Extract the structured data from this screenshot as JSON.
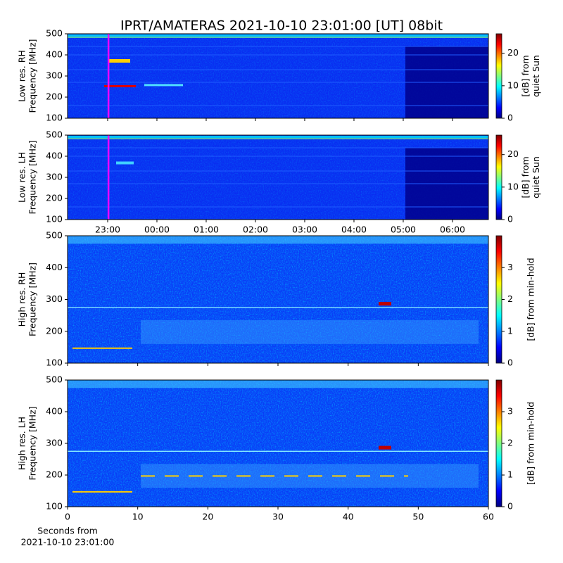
{
  "chart_data": [
    {
      "type": "heatmap",
      "title": "IPRT/AMATERAS 2021-10-10 23:01:00 [UT]   08bit",
      "ylabel": [
        "Low res. RH",
        "Frequency [MHz]"
      ],
      "xlim": [
        22.186,
        30.729
      ],
      "sharex": 1,
      "ylim": [
        100,
        500
      ],
      "yticks": [
        100,
        200,
        300,
        400,
        500
      ],
      "marker_x": 23.0167,
      "marker_color": "#ff00ff",
      "colorbar": {
        "label": [
          "[dB] from",
          "quiet Sun"
        ],
        "lim": [
          0,
          26
        ],
        "ticks": [
          0,
          10,
          20
        ]
      }
    },
    {
      "type": "heatmap",
      "ylabel": [
        "Low res. LH",
        "Frequency [MHz]"
      ],
      "xlim": [
        22.186,
        30.729
      ],
      "xticks": [
        {
          "value": 23,
          "label": "23:00"
        },
        {
          "value": 24,
          "label": "00:00"
        },
        {
          "value": 25,
          "label": "01:00"
        },
        {
          "value": 26,
          "label": "02:00"
        },
        {
          "value": 27,
          "label": "03:00"
        },
        {
          "value": 28,
          "label": "04:00"
        },
        {
          "value": 29,
          "label": "05:00"
        },
        {
          "value": 30,
          "label": "06:00"
        }
      ],
      "ylim": [
        100,
        500
      ],
      "yticks": [
        100,
        200,
        300,
        400,
        500
      ],
      "marker_x": 23.0167,
      "marker_color": "#ff00ff",
      "colorbar": {
        "label": [
          "[dB] from",
          "quiet Sun"
        ],
        "lim": [
          0,
          26
        ],
        "ticks": [
          0,
          10,
          20
        ]
      }
    },
    {
      "type": "heatmap",
      "ylabel": [
        "High res. RH",
        "Frequency [MHz]"
      ],
      "xlim": [
        0,
        60
      ],
      "sharex": 3,
      "ylim": [
        100,
        500
      ],
      "yticks": [
        100,
        200,
        300,
        400,
        500
      ],
      "colorbar": {
        "label": [
          "[dB] from min-hold"
        ],
        "lim": [
          0,
          4
        ],
        "ticks": [
          0,
          1,
          2,
          3
        ]
      }
    },
    {
      "type": "heatmap",
      "ylabel": [
        "High res. LH",
        "Frequency [MHz]"
      ],
      "xlabel": [
        "Seconds from",
        "2021-10-10 23:01:00"
      ],
      "xlim": [
        0,
        60
      ],
      "xticks": [
        0,
        10,
        20,
        30,
        40,
        50,
        60
      ],
      "ylim": [
        100,
        500
      ],
      "yticks": [
        100,
        200,
        300,
        400,
        500
      ],
      "colorbar": {
        "label": [
          "[dB] from min-hold"
        ],
        "lim": [
          0,
          4
        ],
        "ticks": [
          0,
          1,
          2,
          3
        ]
      }
    }
  ]
}
